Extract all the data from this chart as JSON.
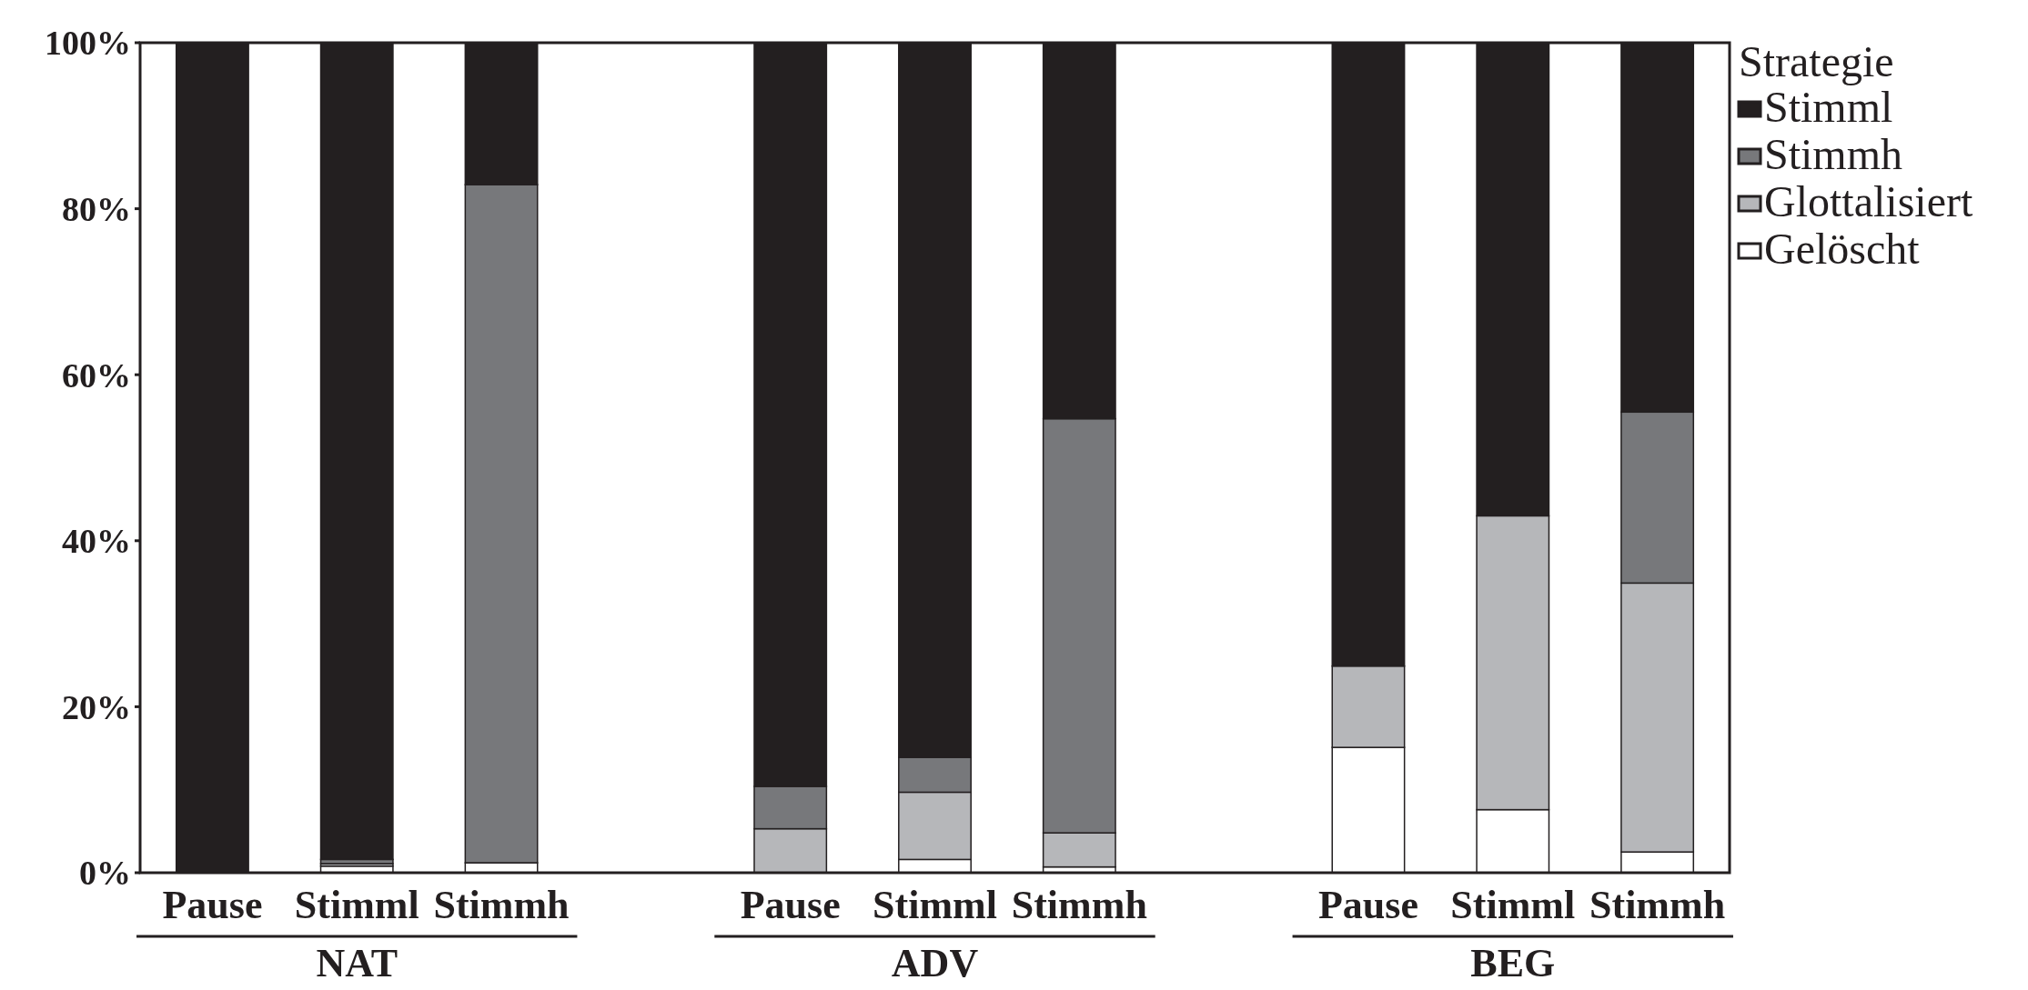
{
  "chart_data": {
    "type": "bar",
    "stacked": true,
    "categories": [
      "Pause",
      "Stimml",
      "Stimmh",
      null,
      "Pause",
      "Stimml",
      "Stimmh",
      null,
      "Pause",
      "Stimml",
      "Stimmh"
    ],
    "series": [
      {
        "name": "Gelöscht",
        "color": "#ffffff",
        "values": [
          0,
          0.8,
          1.2,
          null,
          0,
          1.6,
          0.7,
          null,
          15.1,
          7.6,
          2.5
        ]
      },
      {
        "name": "Glottalisiert",
        "color": "#b6b7ba",
        "values": [
          0,
          0.3,
          0,
          null,
          5.3,
          8.1,
          4.1,
          null,
          9.8,
          35.4,
          32.4
        ]
      },
      {
        "name": "Stimmh",
        "color": "#77787b",
        "values": [
          0,
          0.5,
          81.7,
          null,
          5.1,
          4.2,
          49.9,
          null,
          0,
          0,
          20.6
        ]
      },
      {
        "name": "Stimml",
        "color": "#231f20",
        "values": [
          100,
          98.4,
          17.1,
          null,
          89.6,
          86.1,
          45.3,
          null,
          75.1,
          57,
          44.5
        ]
      }
    ],
    "ylim": [
      0,
      100
    ],
    "yticks": [
      {
        "value": 0,
        "label": "0%"
      },
      {
        "value": 20,
        "label": "20%"
      },
      {
        "value": 40,
        "label": "40%"
      },
      {
        "value": 60,
        "label": "60%"
      },
      {
        "value": 80,
        "label": "80%"
      },
      {
        "value": 100,
        "label": "100%"
      }
    ],
    "legend": "top right",
    "legend_title": "Strategie",
    "grid": false,
    "annotations": [
      "NAT",
      "ADV",
      "BEG"
    ]
  }
}
